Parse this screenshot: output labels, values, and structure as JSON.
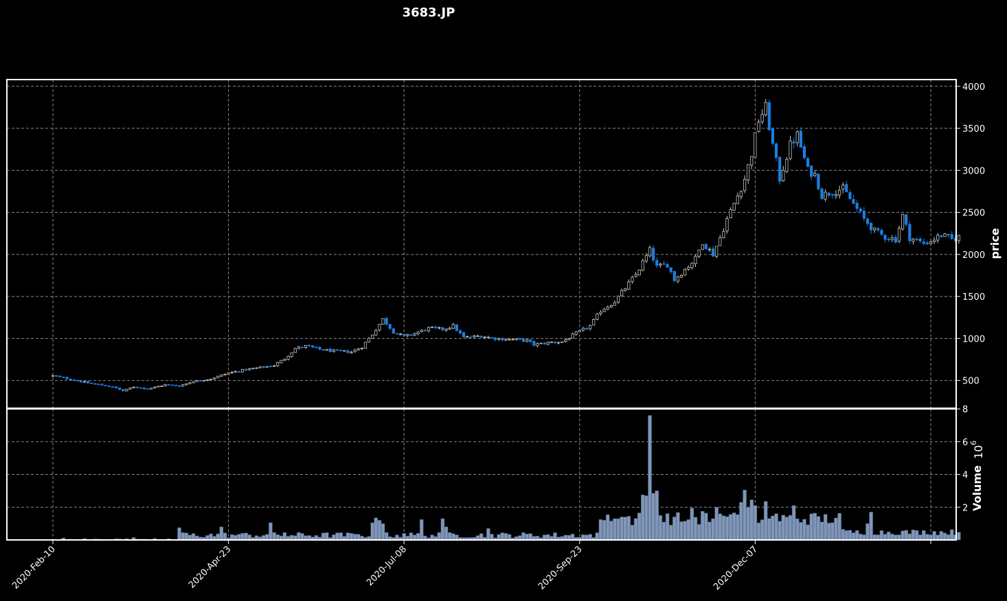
{
  "chart_data": {
    "type": "candlestick",
    "title": "3683.JP",
    "price_panel": {
      "ylabel": "price",
      "ylim": [
        170,
        4080
      ],
      "yticks": [
        500,
        1000,
        1500,
        2000,
        2500,
        3000,
        3500,
        4000
      ]
    },
    "volume_panel": {
      "ylabel": "Volume",
      "ylabel_exponent": "10",
      "ylabel_exponent_power": "6",
      "ylim": [
        0,
        8
      ],
      "yticks": [
        2,
        4,
        6,
        8
      ],
      "ytick_labels": [
        "2",
        "4",
        "6",
        "8"
      ]
    },
    "xtick_labels": [
      "2020-Feb-10",
      "2020-Apr-23",
      "2020-Jul-08",
      "2020-Sep-23",
      "2020-Dec-07"
    ],
    "xtick_index": [
      0,
      50,
      100,
      150,
      200
    ],
    "grid": true,
    "colors": {
      "background": "#000000",
      "up_candle": "#000000",
      "up_edge": "#d0d0d0",
      "down_candle": "#1a7fe0",
      "volume_bar": "#7f96b8",
      "grid": "#8a8a8a"
    },
    "price_anchors": [
      [
        0,
        555
      ],
      [
        5,
        515
      ],
      [
        10,
        470
      ],
      [
        15,
        440
      ],
      [
        18,
        410
      ],
      [
        20,
        375
      ],
      [
        23,
        425
      ],
      [
        27,
        400
      ],
      [
        32,
        450
      ],
      [
        36,
        435
      ],
      [
        40,
        490
      ],
      [
        45,
        520
      ],
      [
        50,
        590
      ],
      [
        55,
        630
      ],
      [
        60,
        660
      ],
      [
        63,
        680
      ],
      [
        66,
        760
      ],
      [
        69,
        880
      ],
      [
        72,
        910
      ],
      [
        76,
        870
      ],
      [
        80,
        850
      ],
      [
        85,
        840
      ],
      [
        88,
        900
      ],
      [
        91,
        1050
      ],
      [
        94,
        1230
      ],
      [
        97,
        1080
      ],
      [
        100,
        1020
      ],
      [
        103,
        1060
      ],
      [
        107,
        1120
      ],
      [
        111,
        1110
      ],
      [
        114,
        1150
      ],
      [
        117,
        1010
      ],
      [
        122,
        1030
      ],
      [
        126,
        1000
      ],
      [
        130,
        990
      ],
      [
        135,
        975
      ],
      [
        137,
        925
      ],
      [
        142,
        955
      ],
      [
        145,
        960
      ],
      [
        149,
        1060
      ],
      [
        153,
        1150
      ],
      [
        156,
        1330
      ],
      [
        160,
        1440
      ],
      [
        163,
        1600
      ],
      [
        166,
        1760
      ],
      [
        170,
        2050
      ],
      [
        172,
        1850
      ],
      [
        175,
        1880
      ],
      [
        177,
        1700
      ],
      [
        180,
        1820
      ],
      [
        183,
        1950
      ],
      [
        185,
        2150
      ],
      [
        188,
        2000
      ],
      [
        190,
        2200
      ],
      [
        192,
        2420
      ],
      [
        195,
        2700
      ],
      [
        197,
        2900
      ],
      [
        199,
        3200
      ],
      [
        201,
        3600
      ],
      [
        203,
        3750
      ],
      [
        205,
        3300
      ],
      [
        207,
        2900
      ],
      [
        210,
        3300
      ],
      [
        212,
        3420
      ],
      [
        215,
        3000
      ],
      [
        217,
        2950
      ],
      [
        219,
        2700
      ],
      [
        222,
        2750
      ],
      [
        225,
        2780
      ],
      [
        228,
        2600
      ],
      [
        231,
        2420
      ],
      [
        234,
        2280
      ],
      [
        237,
        2210
      ],
      [
        240,
        2180
      ],
      [
        242,
        2460
      ],
      [
        244,
        2200
      ],
      [
        248,
        2130
      ],
      [
        250,
        2160
      ],
      [
        253,
        2230
      ],
      [
        256,
        2180
      ],
      [
        258,
        2210
      ]
    ],
    "volume_events": [
      [
        3,
        0.12
      ],
      [
        23,
        0.15
      ],
      [
        36,
        0.75
      ],
      [
        37,
        0.45
      ],
      [
        48,
        0.8
      ],
      [
        53,
        0.35
      ],
      [
        62,
        1.05
      ],
      [
        66,
        0.45
      ],
      [
        87,
        0.35
      ],
      [
        91,
        1.05
      ],
      [
        92,
        1.35
      ],
      [
        93,
        1.2
      ],
      [
        94,
        1.0
      ],
      [
        100,
        0.4
      ],
      [
        105,
        1.25
      ],
      [
        111,
        1.3
      ],
      [
        112,
        0.8
      ],
      [
        124,
        0.7
      ],
      [
        156,
        1.25
      ],
      [
        157,
        1.2
      ],
      [
        160,
        1.3
      ],
      [
        161,
        1.3
      ],
      [
        163,
        1.4
      ],
      [
        164,
        1.45
      ],
      [
        167,
        1.65
      ],
      [
        168,
        2.75
      ],
      [
        169,
        2.7
      ],
      [
        170,
        7.6
      ],
      [
        171,
        2.85
      ],
      [
        172,
        3.0
      ],
      [
        173,
        1.5
      ],
      [
        180,
        1.15
      ],
      [
        182,
        1.95
      ],
      [
        185,
        1.75
      ],
      [
        188,
        1.3
      ],
      [
        189,
        2.0
      ],
      [
        190,
        1.6
      ],
      [
        195,
        1.55
      ],
      [
        196,
        2.3
      ],
      [
        197,
        3.05
      ],
      [
        198,
        2.0
      ],
      [
        199,
        2.45
      ],
      [
        200,
        2.1
      ],
      [
        203,
        2.35
      ],
      [
        206,
        1.6
      ],
      [
        211,
        2.1
      ],
      [
        225,
        0.65
      ],
      [
        232,
        1.0
      ],
      [
        233,
        1.7
      ]
    ]
  }
}
